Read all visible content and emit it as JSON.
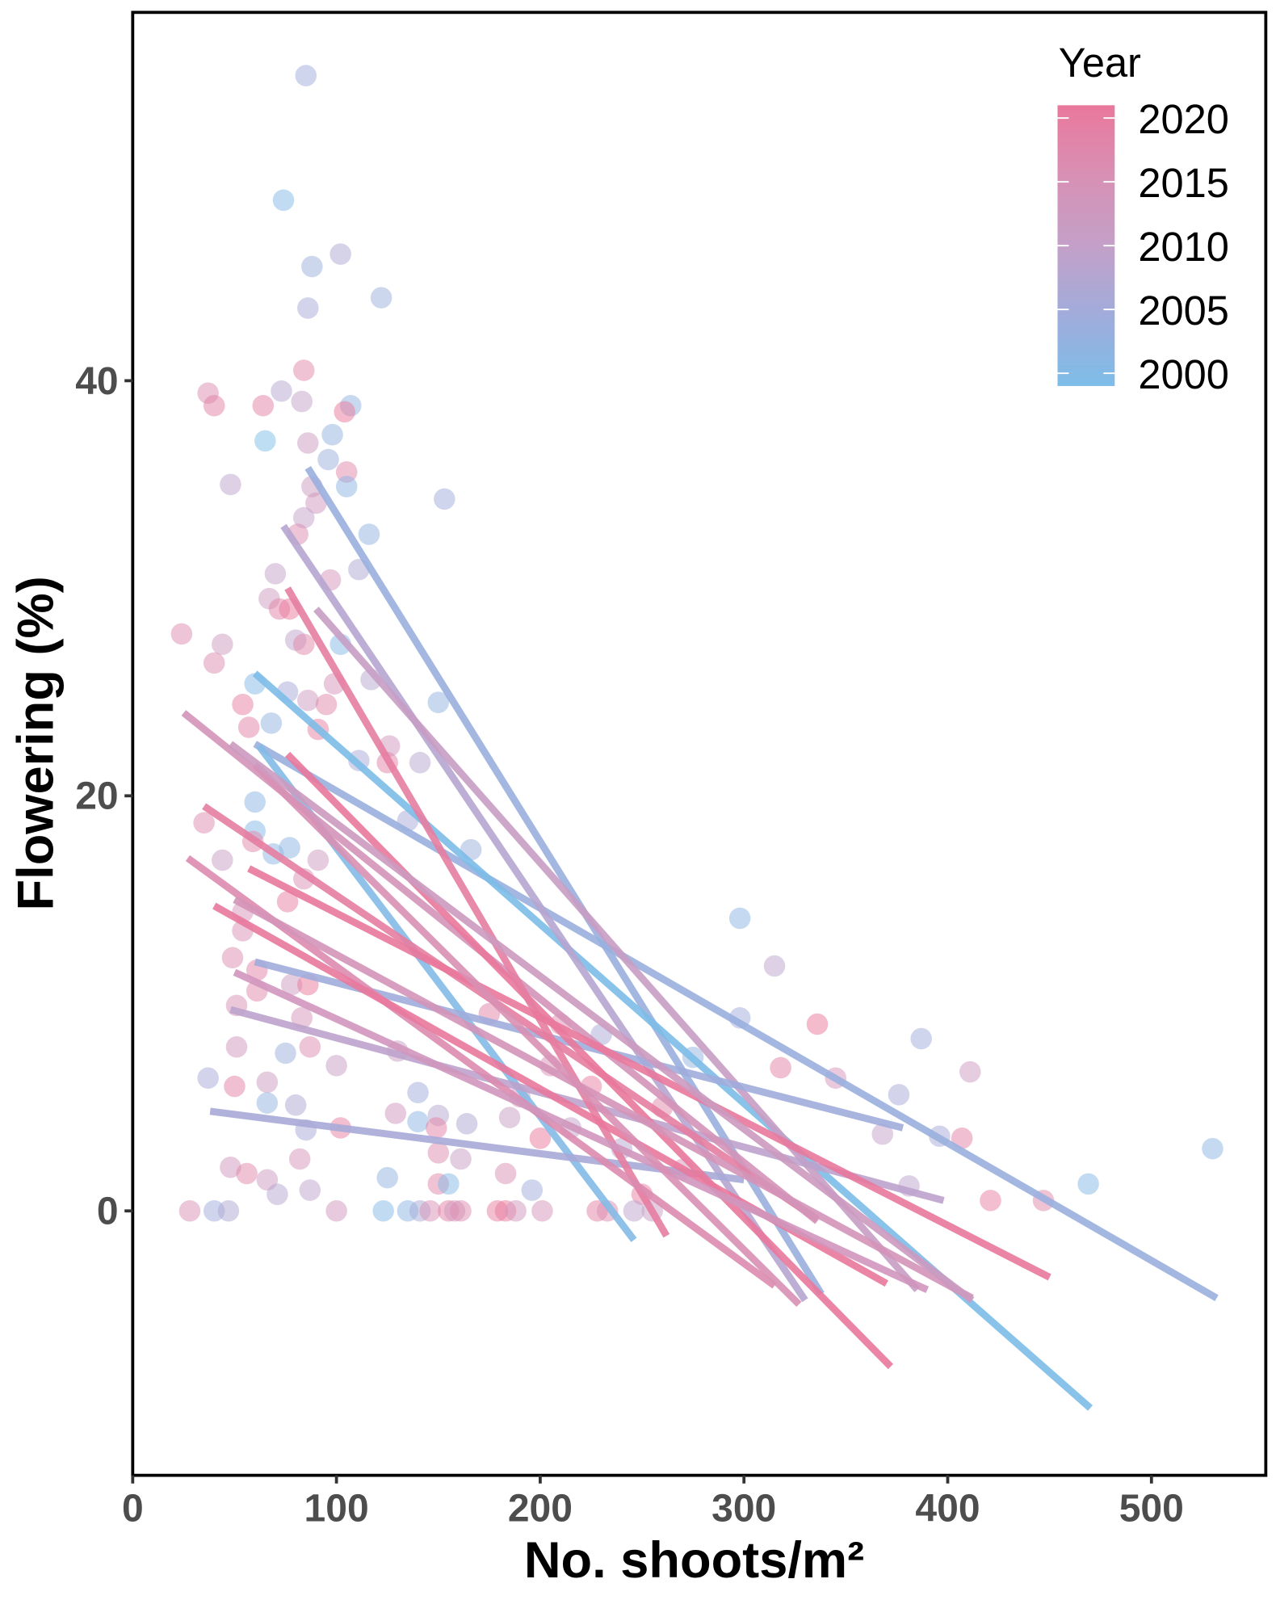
{
  "chart_data": {
    "type": "scatter",
    "title": "",
    "xlabel": "No. shoots/m²",
    "ylabel": "Flowering (%)",
    "xlim": [
      0,
      560
    ],
    "ylim": [
      -12.5,
      57.5
    ],
    "xticks": [
      "0",
      "100",
      "200",
      "300",
      "400",
      "500"
    ],
    "xtick_values": [
      0,
      100,
      200,
      300,
      400,
      500
    ],
    "yticks": [
      "0",
      "20",
      "40"
    ],
    "ytick_values": [
      0,
      20,
      40
    ],
    "grid": false,
    "legend": {
      "title": "Year",
      "placement": "top-right",
      "type": "colorbar",
      "labels": [
        "2020",
        "2015",
        "2010",
        "2005",
        "2000"
      ],
      "values": [
        2020,
        2015,
        2010,
        2005,
        2000
      ],
      "range": [
        1999,
        2021
      ]
    },
    "color_scale": {
      "2000": "#7dbde8",
      "2005": "#a0acdb",
      "2010": "#c4a0c8",
      "2015": "#d890b4",
      "2020": "#e9789c"
    },
    "points": [
      [
        85,
        54.7,
        2005
      ],
      [
        74,
        48.7,
        2001
      ],
      [
        88,
        45.5,
        2004
      ],
      [
        102,
        46.1,
        2007
      ],
      [
        86,
        43.5,
        2006
      ],
      [
        122,
        44,
        2004
      ],
      [
        84,
        40.5,
        2017
      ],
      [
        73,
        39.5,
        2008
      ],
      [
        37,
        39.4,
        2016
      ],
      [
        40,
        38.8,
        2018
      ],
      [
        64,
        38.8,
        2018
      ],
      [
        83,
        39,
        2010
      ],
      [
        107,
        38.8,
        2003
      ],
      [
        104,
        38.5,
        2020
      ],
      [
        65,
        37.1,
        2000
      ],
      [
        98,
        37.4,
        2003
      ],
      [
        86,
        37,
        2012
      ],
      [
        96,
        36.2,
        2004
      ],
      [
        105,
        35.6,
        2017
      ],
      [
        48,
        35,
        2009
      ],
      [
        105,
        34.9,
        2002
      ],
      [
        88,
        34.9,
        2012
      ],
      [
        153,
        34.3,
        2005
      ],
      [
        90,
        34.1,
        2013
      ],
      [
        84,
        33.4,
        2010
      ],
      [
        81,
        32.6,
        2016
      ],
      [
        116,
        32.6,
        2003
      ],
      [
        111,
        30.9,
        2007
      ],
      [
        97,
        30.4,
        2014
      ],
      [
        70,
        30.7,
        2010
      ],
      [
        67,
        29.5,
        2012
      ],
      [
        72,
        29,
        2018
      ],
      [
        77,
        29,
        2021
      ],
      [
        24,
        27.8,
        2016
      ],
      [
        44,
        27.3,
        2012
      ],
      [
        80,
        27.5,
        2009
      ],
      [
        84,
        27.3,
        2017
      ],
      [
        102,
        27.3,
        2001
      ],
      [
        40,
        26.4,
        2016
      ],
      [
        60,
        25.4,
        2001
      ],
      [
        99,
        25.4,
        2014
      ],
      [
        117,
        25.6,
        2008
      ],
      [
        76,
        25,
        2006
      ],
      [
        54,
        24.4,
        2019
      ],
      [
        86,
        24.6,
        2012
      ],
      [
        95,
        24.4,
        2017
      ],
      [
        150,
        24.5,
        2003
      ],
      [
        68,
        23.5,
        2003
      ],
      [
        57,
        23.3,
        2018
      ],
      [
        91,
        23.2,
        2019
      ],
      [
        126,
        22.4,
        2013
      ],
      [
        125,
        21.6,
        2018
      ],
      [
        111,
        21.7,
        2006
      ],
      [
        141,
        21.6,
        2008
      ],
      [
        60,
        19.7,
        2002
      ],
      [
        35,
        18.7,
        2016
      ],
      [
        60,
        18.3,
        2001
      ],
      [
        135,
        18.8,
        2006
      ],
      [
        166,
        17.4,
        2004
      ],
      [
        69,
        17.2,
        2002
      ],
      [
        77,
        17.5,
        2002
      ],
      [
        44,
        16.9,
        2011
      ],
      [
        91,
        16.9,
        2012
      ],
      [
        84,
        16,
        2015
      ],
      [
        59,
        17.8,
        2017
      ],
      [
        76,
        14.9,
        2019
      ],
      [
        54,
        14.4,
        2014
      ],
      [
        54,
        13.5,
        2015
      ],
      [
        298,
        14.1,
        2002
      ],
      [
        315,
        11.8,
        2009
      ],
      [
        49,
        12.2,
        2016
      ],
      [
        61,
        11.6,
        2018
      ],
      [
        78,
        10.9,
        2012
      ],
      [
        61,
        10.6,
        2017
      ],
      [
        86,
        10.9,
        2020
      ],
      [
        51,
        9.9,
        2015
      ],
      [
        83,
        9.3,
        2014
      ],
      [
        298,
        9.3,
        2005
      ],
      [
        336,
        9,
        2020
      ],
      [
        51,
        7.9,
        2013
      ],
      [
        75,
        7.6,
        2004
      ],
      [
        130,
        7.7,
        2011
      ],
      [
        87,
        7.9,
        2016
      ],
      [
        37,
        6.4,
        2006
      ],
      [
        66,
        6.2,
        2012
      ],
      [
        100,
        7,
        2011
      ],
      [
        318,
        6.9,
        2018
      ],
      [
        345,
        6.4,
        2014
      ],
      [
        387,
        8.3,
        2005
      ],
      [
        411,
        6.7,
        2012
      ],
      [
        275,
        7.4,
        2003
      ],
      [
        50,
        6,
        2018
      ],
      [
        66,
        5.2,
        2003
      ],
      [
        140,
        5.7,
        2005
      ],
      [
        376,
        5.6,
        2006
      ],
      [
        80,
        5.1,
        2007
      ],
      [
        129,
        4.7,
        2013
      ],
      [
        140,
        4.3,
        2002
      ],
      [
        150,
        4.6,
        2008
      ],
      [
        164,
        4.2,
        2007
      ],
      [
        85,
        3.9,
        2006
      ],
      [
        102,
        4,
        2019
      ],
      [
        149,
        4,
        2018
      ],
      [
        368,
        3.7,
        2010
      ],
      [
        407,
        3.5,
        2018
      ],
      [
        396,
        3.6,
        2006
      ],
      [
        150,
        2.8,
        2016
      ],
      [
        161,
        2.5,
        2011
      ],
      [
        82,
        2.5,
        2014
      ],
      [
        48,
        2.1,
        2013
      ],
      [
        56,
        1.8,
        2017
      ],
      [
        66,
        1.5,
        2012
      ],
      [
        125,
        1.6,
        2003
      ],
      [
        150,
        1.3,
        2017
      ],
      [
        155,
        1.3,
        2001
      ],
      [
        183,
        1.8,
        2015
      ],
      [
        196,
        1,
        2005
      ],
      [
        87,
        1,
        2009
      ],
      [
        71,
        0.8,
        2008
      ],
      [
        250,
        0.8,
        2019
      ],
      [
        421,
        0.5,
        2019
      ],
      [
        447,
        0.5,
        2017
      ],
      [
        469,
        1.3,
        2001
      ],
      [
        530,
        3,
        2002
      ],
      [
        381,
        1.2,
        2009
      ],
      [
        28,
        0,
        2015
      ],
      [
        40,
        0,
        2005
      ],
      [
        47,
        0,
        2007
      ],
      [
        100,
        0,
        2013
      ],
      [
        123,
        0,
        2001
      ],
      [
        135,
        0,
        2002
      ],
      [
        141,
        0,
        2006
      ],
      [
        146,
        0,
        2015
      ],
      [
        155,
        0,
        2018
      ],
      [
        158,
        0,
        2013
      ],
      [
        161,
        0,
        2016
      ],
      [
        179,
        0,
        2019
      ],
      [
        183,
        0,
        2021
      ],
      [
        188,
        0,
        2013
      ],
      [
        201,
        0,
        2014
      ],
      [
        228,
        0,
        2018
      ],
      [
        233,
        0,
        2016
      ],
      [
        255,
        0,
        2011
      ],
      [
        246,
        0,
        2009
      ],
      [
        190,
        5.5,
        2012
      ],
      [
        205,
        7,
        2015
      ],
      [
        215,
        4,
        2010
      ],
      [
        225,
        6,
        2019
      ],
      [
        240,
        3,
        2008
      ],
      [
        260,
        5,
        2017
      ],
      [
        270,
        2,
        2014
      ],
      [
        210,
        9,
        2016
      ],
      [
        230,
        8.5,
        2006
      ],
      [
        200,
        3.5,
        2020
      ],
      [
        185,
        4.5,
        2011
      ],
      [
        175,
        9.5,
        2018
      ]
    ],
    "fit_lines": [
      {
        "year": 2004,
        "x": [
          86,
          338
        ],
        "y": [
          35.8,
          -4.0
        ]
      },
      {
        "year": 2004,
        "x": [
          60,
          532
        ],
        "y": [
          22.5,
          -4.2
        ]
      },
      {
        "year": 2000,
        "x": [
          60,
          470
        ],
        "y": [
          25.9,
          -9.5
        ]
      },
      {
        "year": 2001,
        "x": [
          62,
          246
        ],
        "y": [
          22.4,
          -1.4
        ]
      },
      {
        "year": 2008,
        "x": [
          74,
          330
        ],
        "y": [
          33,
          -4.3
        ]
      },
      {
        "year": 2011,
        "x": [
          90,
          385
        ],
        "y": [
          29,
          -3.8
        ]
      },
      {
        "year": 2006,
        "x": [
          38,
          300
        ],
        "y": [
          4.8,
          1.5
        ]
      },
      {
        "year": 2009,
        "x": [
          48,
          398
        ],
        "y": [
          9.7,
          0.5
        ]
      },
      {
        "year": 2005,
        "x": [
          60,
          378
        ],
        "y": [
          12,
          4
        ]
      },
      {
        "year": 2019,
        "x": [
          35,
          336
        ],
        "y": [
          19.5,
          -0.4
        ]
      },
      {
        "year": 2014,
        "x": [
          25,
          336
        ],
        "y": [
          24,
          -0.5
        ]
      },
      {
        "year": 2021,
        "x": [
          76,
          372
        ],
        "y": [
          22,
          -7.5
        ]
      },
      {
        "year": 2019,
        "x": [
          76,
          262
        ],
        "y": [
          30,
          -1.2
        ]
      },
      {
        "year": 2021,
        "x": [
          57,
          450
        ],
        "y": [
          16.5,
          -3.2
        ]
      },
      {
        "year": 2016,
        "x": [
          27,
          315
        ],
        "y": [
          17,
          -3.6
        ]
      },
      {
        "year": 2014,
        "x": [
          50,
          412
        ],
        "y": [
          15,
          -4.2
        ]
      },
      {
        "year": 2020,
        "x": [
          40,
          370
        ],
        "y": [
          14.7,
          -3.5
        ]
      },
      {
        "year": 2013,
        "x": [
          50,
          390
        ],
        "y": [
          11.5,
          -3.8
        ]
      },
      {
        "year": 2015,
        "x": [
          60,
          327
        ],
        "y": [
          21.5,
          -4.5
        ]
      },
      {
        "year": 2012,
        "x": [
          48,
          412
        ],
        "y": [
          22.5,
          -4.3
        ]
      }
    ]
  }
}
